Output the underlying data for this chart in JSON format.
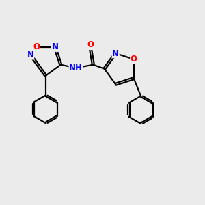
{
  "bg_color": "#ebebeb",
  "bond_color": "#000000",
  "bond_width": 1.6,
  "atom_colors": {
    "N": "#0000ff",
    "O": "#ff0000",
    "C": "#000000"
  },
  "font_size": 8.5,
  "fig_size": [
    3.0,
    3.0
  ],
  "dpi": 100
}
